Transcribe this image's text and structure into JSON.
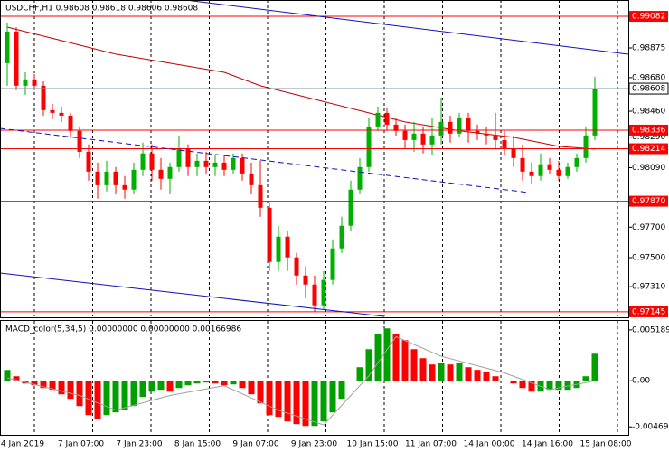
{
  "chart_data": [
    {
      "type": "candlestick",
      "title": "USDCHF,H1  0.98608 0.98618 0.98606 0.98608",
      "xlim": [
        -0.8,
        68.7
      ],
      "ylim": [
        0.97115,
        0.99189
      ],
      "xticks": [
        {
          "value": 3,
          "label": "4 Jan 2019"
        },
        {
          "value": 9.45,
          "label": "7 Jan 07:00"
        },
        {
          "value": 15.9,
          "label": "7 Jan 23:00"
        },
        {
          "value": 22.35,
          "label": "8 Jan 15:00"
        },
        {
          "value": 28.8,
          "label": "9 Jan 07:00"
        },
        {
          "value": 35.25,
          "label": "9 Jan 23:00"
        },
        {
          "value": 41.7,
          "label": "10 Jan 15:00"
        },
        {
          "value": 48.15,
          "label": "11 Jan 07:00"
        },
        {
          "value": 54.6,
          "label": "14 Jan 00:00"
        },
        {
          "value": 61.05,
          "label": "14 Jan 16:00"
        },
        {
          "value": 67.5,
          "label": "15 Jan 08:00"
        }
      ],
      "yticks": [
        0.98875,
        {
          "value": 0.9868,
          "label": "0.98680"
        },
        {
          "value": 0.9846,
          "label": "0.98460"
        },
        {
          "value": 0.9829,
          "label": "0.98290"
        },
        {
          "value": 0.9809,
          "label": "0.98090"
        },
        {
          "value": 0.977,
          "label": "0.97700"
        },
        {
          "value": 0.975,
          "label": "0.97500"
        },
        {
          "value": 0.9731,
          "label": "0.97310"
        }
      ],
      "grid": true,
      "up_color": "#00b000",
      "down_color": "#ff0000",
      "open": [
        0.98775,
        0.98982,
        0.98627,
        0.98668,
        0.98627,
        0.98467,
        0.98449,
        0.98431,
        0.98331,
        0.98194,
        0.98064,
        0.97975,
        0.98064,
        0.97975,
        0.97946,
        0.98076,
        0.98183,
        0.98076,
        0.98017,
        0.98094,
        0.98212,
        0.98094,
        0.98135,
        0.98094,
        0.98123,
        0.98076,
        0.98153,
        0.98052,
        0.97975,
        0.97827,
        0.97472,
        0.97638,
        0.97502,
        0.97383,
        0.97324,
        0.97188,
        0.97354,
        0.97561,
        0.97709,
        0.97946,
        0.98094,
        0.9836,
        0.98449,
        0.98372,
        0.98331,
        0.98271,
        0.98313,
        0.98242,
        0.98301,
        0.9839,
        0.98313,
        0.98419,
        0.98331,
        0.98313,
        0.98301,
        0.98271,
        0.98212,
        0.98153,
        0.98064,
        0.98035,
        0.98112,
        0.98076,
        0.98035,
        0.98094,
        0.98153,
        0.98301
      ],
      "high": [
        0.99041,
        0.99011,
        0.98715,
        0.98704,
        0.98656,
        0.98508,
        0.9849,
        0.98449,
        0.9836,
        0.98242,
        0.98123,
        0.98135,
        0.98094,
        0.98035,
        0.98123,
        0.98254,
        0.98242,
        0.98153,
        0.98123,
        0.98301,
        0.98242,
        0.98183,
        0.98194,
        0.98171,
        0.98171,
        0.98183,
        0.98183,
        0.98123,
        0.98135,
        0.97857,
        0.97709,
        0.97679,
        0.97531,
        0.97443,
        0.97383,
        0.97413,
        0.9762,
        0.97768,
        0.98005,
        0.98153,
        0.98419,
        0.9849,
        0.98479,
        0.98419,
        0.98372,
        0.9839,
        0.9836,
        0.98419,
        0.9855,
        0.98431,
        0.98449,
        0.98449,
        0.98372,
        0.9836,
        0.98449,
        0.98331,
        0.98301,
        0.98242,
        0.98123,
        0.98183,
        0.98153,
        0.98135,
        0.98123,
        0.98183,
        0.9836,
        0.98686
      ],
      "low": [
        0.98627,
        0.98597,
        0.98567,
        0.98597,
        0.98431,
        0.98408,
        0.9839,
        0.98289,
        0.98153,
        0.98005,
        0.97887,
        0.97934,
        0.97916,
        0.97887,
        0.97916,
        0.98035,
        0.98005,
        0.97946,
        0.97916,
        0.98064,
        0.98035,
        0.98035,
        0.98052,
        0.98035,
        0.98035,
        0.98052,
        0.98005,
        0.97916,
        0.97768,
        0.97413,
        0.97413,
        0.97413,
        0.97324,
        0.97235,
        0.97147,
        0.97164,
        0.97324,
        0.97531,
        0.97679,
        0.97916,
        0.98064,
        0.98331,
        0.98331,
        0.98301,
        0.98212,
        0.98194,
        0.98183,
        0.98171,
        0.98242,
        0.98254,
        0.98289,
        0.98254,
        0.98271,
        0.98242,
        0.98212,
        0.98171,
        0.98094,
        0.98005,
        0.97987,
        0.98005,
        0.98052,
        0.98005,
        0.98017,
        0.98064,
        0.98123,
        0.98271
      ],
      "close": [
        0.98982,
        0.98627,
        0.98668,
        0.98627,
        0.98467,
        0.98449,
        0.98431,
        0.98331,
        0.98194,
        0.98064,
        0.97975,
        0.98064,
        0.97975,
        0.97946,
        0.98076,
        0.98183,
        0.98076,
        0.98017,
        0.98094,
        0.98212,
        0.98094,
        0.98135,
        0.98094,
        0.98123,
        0.98076,
        0.98153,
        0.98052,
        0.97975,
        0.97827,
        0.97472,
        0.97638,
        0.97502,
        0.97383,
        0.97324,
        0.97188,
        0.97354,
        0.97561,
        0.97709,
        0.97946,
        0.98094,
        0.9836,
        0.98449,
        0.98372,
        0.98331,
        0.98271,
        0.98313,
        0.98242,
        0.98301,
        0.9839,
        0.98313,
        0.98419,
        0.98331,
        0.98313,
        0.98301,
        0.98271,
        0.98212,
        0.98153,
        0.98064,
        0.98035,
        0.98112,
        0.98076,
        0.98035,
        0.98094,
        0.98153,
        0.98301,
        0.98608
      ],
      "moving_average": {
        "color": "#c00000",
        "x": [
          0,
          6,
          12,
          18,
          24,
          28,
          34,
          40,
          44,
          50,
          56,
          61,
          65
        ],
        "values": [
          0.99011,
          0.98923,
          0.98834,
          0.98775,
          0.98715,
          0.98627,
          0.98538,
          0.98449,
          0.9839,
          0.98331,
          0.98289,
          0.9823,
          0.98212
        ]
      },
      "levels": {
        "color": "#ff0000",
        "values": [
          0.99082,
          0.98336,
          0.98214,
          {
            "value": 0.9787,
            "label": "0.97870"
          },
          0.97145
        ]
      },
      "current_price": 0.98608
    },
    {
      "type": "bar",
      "title": "MACD_color(5,34,5) 0.00000000 0.00000000 0.00166986",
      "xlim": [
        -0.8,
        68.7
      ],
      "ylim": [
        -0.0056,
        0.0061
      ],
      "yticks": [
        0.0051895,
        {
          "value": 0,
          "label": "0.00"
        },
        -0.0046988
      ],
      "up_color": "#00a000",
      "down_color": "#ff0000",
      "values": [
        0.0011,
        0.00046,
        -0.00028,
        -0.00046,
        -0.00074,
        -0.00092,
        -0.00138,
        -0.00184,
        -0.00258,
        -0.0035,
        -0.00387,
        -0.0035,
        -0.00322,
        -0.00295,
        -0.00258,
        -0.00166,
        -0.00111,
        -0.00092,
        -0.00111,
        -0.00074,
        -0.00046,
        -0.00028,
        -0.00018,
        -0.00028,
        -0.00046,
        -0.00037,
        -0.00074,
        -0.00138,
        -0.0023,
        -0.0035,
        -0.00368,
        -0.00414,
        -0.00442,
        -0.00461,
        -0.00461,
        -0.00414,
        -0.00322,
        -0.00184,
        0,
        0.00138,
        0.00322,
        0.00479,
        0.00534,
        0.00479,
        0.00414,
        0.00322,
        0.0023,
        0.00166,
        0.00184,
        0.00166,
        0.00184,
        0.00138,
        0.00111,
        0.00092,
        0.00046,
        0,
        -0.00028,
        -0.00074,
        -0.00111,
        -0.00111,
        -0.00092,
        -0.00092,
        -0.00092,
        -0.00074,
        0.00046,
        0.00276
      ],
      "signal": {
        "color": "#a0a0a0",
        "x": [
          0,
          8,
          12,
          18,
          24,
          30,
          35,
          40,
          43,
          48,
          55,
          60,
          65
        ],
        "values": [
          0.0003,
          -0.0015,
          -0.003,
          -0.0015,
          -0.0005,
          -0.003,
          -0.0045,
          0.0005,
          0.0045,
          0.0025,
          0.0008,
          -0.0009,
          0
        ]
      }
    }
  ]
}
